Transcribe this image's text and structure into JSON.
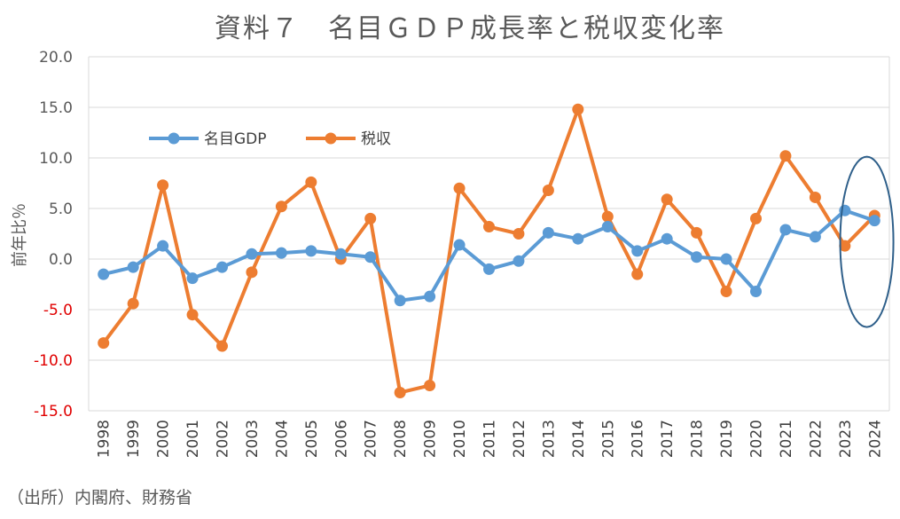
{
  "chart_data": {
    "type": "line",
    "title": "資料７　名目ＧＤＰ成長率と税収変化率",
    "ylabel": "前年比％",
    "xlabel": "",
    "ylim": [
      -15,
      20
    ],
    "yticks": [
      20,
      15,
      10,
      5,
      0,
      -5,
      -10,
      -15
    ],
    "ytick_labels": [
      "20.0",
      "15.0",
      "10.0",
      "5.0",
      "0.0",
      "-5.0",
      "-10.0",
      "-15.0"
    ],
    "categories": [
      "1998",
      "1999",
      "2000",
      "2001",
      "2002",
      "2003",
      "2004",
      "2005",
      "2006",
      "2007",
      "2008",
      "2009",
      "2010",
      "2011",
      "2012",
      "2013",
      "2014",
      "2015",
      "2016",
      "2017",
      "2018",
      "2019",
      "2020",
      "2021",
      "2022",
      "2023",
      "2024"
    ],
    "grid": true,
    "legend_position": "top-left",
    "series": [
      {
        "name": "名目GDP",
        "color": "#5b9bd5",
        "values": [
          -1.5,
          -0.8,
          1.3,
          -1.9,
          -0.8,
          0.5,
          0.6,
          0.8,
          0.5,
          0.2,
          -4.1,
          -3.7,
          1.4,
          -1.0,
          -0.2,
          2.6,
          2.0,
          3.2,
          0.8,
          2.0,
          0.2,
          0.0,
          -3.2,
          2.9,
          2.2,
          4.8,
          3.8
        ]
      },
      {
        "name": "税収",
        "color": "#ed7d31",
        "values": [
          -8.3,
          -4.4,
          7.3,
          -5.5,
          -8.6,
          -1.3,
          5.2,
          7.6,
          0.0,
          4.0,
          -13.2,
          -12.5,
          7.0,
          3.2,
          2.5,
          6.8,
          14.8,
          4.2,
          -1.5,
          5.9,
          2.6,
          -3.2,
          4.0,
          10.2,
          6.1,
          1.3,
          4.3
        ]
      }
    ],
    "annotation": "ellipse around 2023-2024",
    "annotation_color": "#2e5f8a"
  },
  "source_note": "（出所）内閣府、財務省"
}
